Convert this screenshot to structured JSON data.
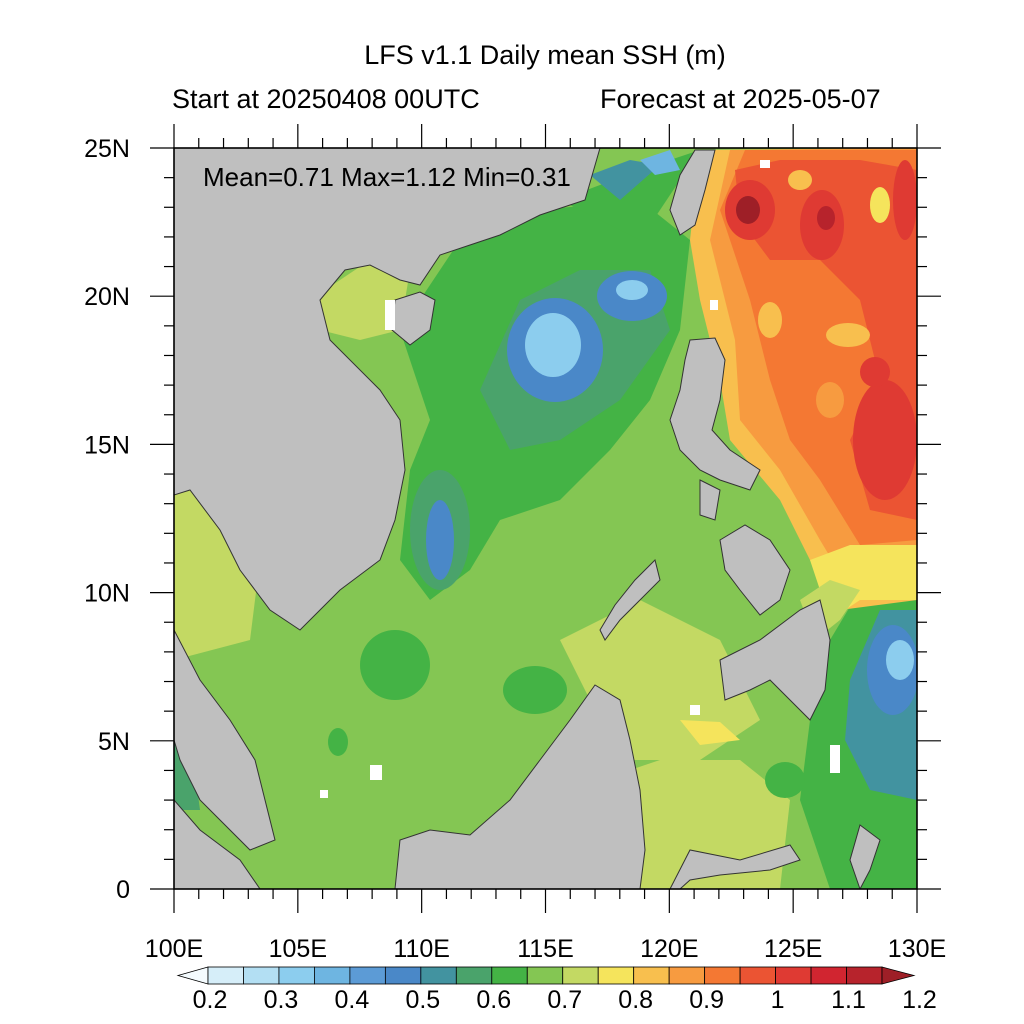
{
  "title": "LFS v1.1 Daily mean SSH (m)",
  "start_label": "Start at 20250408 00UTC",
  "forecast_label": "Forecast at 2025-05-07",
  "stats": {
    "text": "Mean=0.71  Max=1.12  Min=0.31",
    "mean": 0.71,
    "max": 1.12,
    "min": 0.31
  },
  "map": {
    "lon_range": [
      100,
      130
    ],
    "lat_range": [
      0,
      25
    ],
    "lon_labels": [
      "100E",
      "105E",
      "110E",
      "115E",
      "120E",
      "125E",
      "130E"
    ],
    "lat_labels": [
      "0",
      "5N",
      "10N",
      "15N",
      "20N",
      "25N"
    ],
    "land_color": "#bfbfbf",
    "missing_color": "#ffffff"
  },
  "colorbar": {
    "labels": [
      "0.2",
      "0.3",
      "0.4",
      "0.5",
      "0.6",
      "0.7",
      "0.8",
      "0.9",
      "1",
      "1.1",
      "1.2"
    ],
    "bins": [
      {
        "value": 0.15,
        "color": "#f4fbfe"
      },
      {
        "value": 0.2,
        "color": "#d6eef9"
      },
      {
        "value": 0.25,
        "color": "#b3dff3"
      },
      {
        "value": 0.3,
        "color": "#8ccdee"
      },
      {
        "value": 0.35,
        "color": "#6eb5e1"
      },
      {
        "value": 0.4,
        "color": "#5c9bd6"
      },
      {
        "value": 0.45,
        "color": "#4a88c8"
      },
      {
        "value": 0.5,
        "color": "#4293a0"
      },
      {
        "value": 0.55,
        "color": "#4aa36b"
      },
      {
        "value": 0.6,
        "color": "#44b345"
      },
      {
        "value": 0.65,
        "color": "#84c653"
      },
      {
        "value": 0.7,
        "color": "#c3d963"
      },
      {
        "value": 0.75,
        "color": "#f5e45c"
      },
      {
        "value": 0.8,
        "color": "#f8bf4e"
      },
      {
        "value": 0.85,
        "color": "#f79b40"
      },
      {
        "value": 0.9,
        "color": "#f47833"
      },
      {
        "value": 0.95,
        "color": "#eb5433"
      },
      {
        "value": 1.0,
        "color": "#df3a33"
      },
      {
        "value": 1.05,
        "color": "#d12530"
      },
      {
        "value": 1.1,
        "color": "#b7232c"
      },
      {
        "value": 1.15,
        "color": "#9e1f27"
      }
    ]
  }
}
